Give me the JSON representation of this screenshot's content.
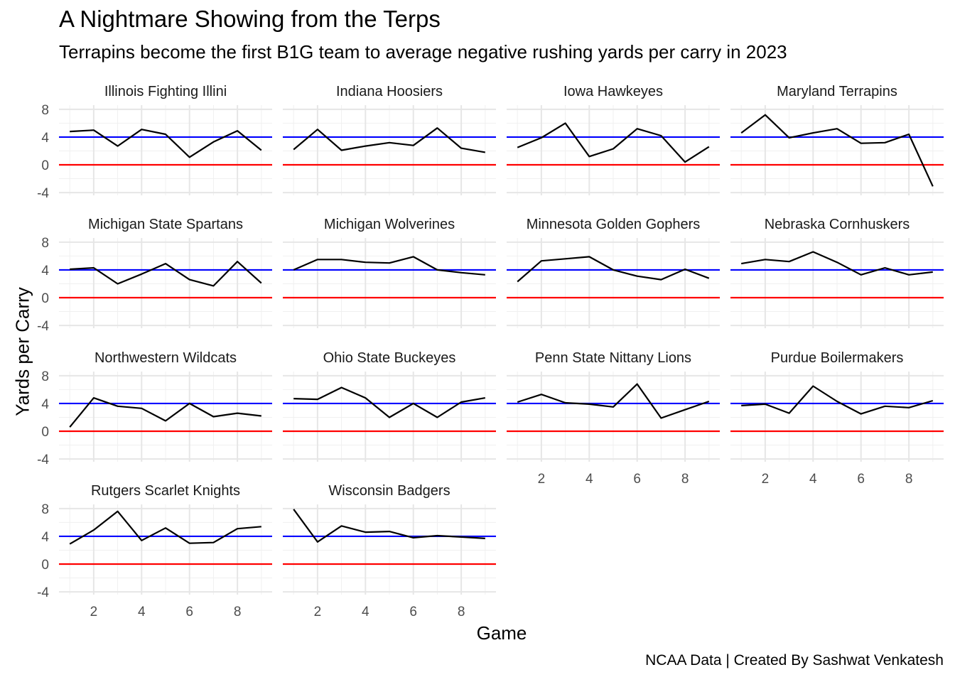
{
  "chart_data": {
    "type": "line",
    "title": "A Nightmare Showing from the Terps",
    "subtitle": "Terrapins become the first B1G team to average negative rushing yards per carry in 2023",
    "xlabel": "Game",
    "ylabel": "Yards per Carry",
    "caption": "NCAA Data | Created By Sashwat Venkatesh",
    "xlim": [
      0.55,
      9.45
    ],
    "ylim": [
      -4.4,
      8.6
    ],
    "x_ticks": [
      2,
      4,
      6,
      8
    ],
    "y_ticks": [
      -4,
      0,
      4,
      8
    ],
    "grid": true,
    "reference_lines": [
      {
        "y": 4,
        "color": "#0000ff"
      },
      {
        "y": 0,
        "color": "#ff0000"
      }
    ],
    "line_color": "#000000",
    "x": [
      1,
      2,
      3,
      4,
      5,
      6,
      7,
      8,
      9
    ],
    "facets": [
      {
        "name": "Illinois Fighting Illini",
        "values": [
          4.8,
          5.0,
          2.7,
          5.1,
          4.4,
          1.1,
          3.3,
          4.9,
          2.1
        ]
      },
      {
        "name": "Indiana Hoosiers",
        "values": [
          2.2,
          5.1,
          2.1,
          2.7,
          3.2,
          2.8,
          5.3,
          2.4,
          1.8
        ]
      },
      {
        "name": "Iowa Hawkeyes",
        "values": [
          2.5,
          3.9,
          6.0,
          1.2,
          2.3,
          5.2,
          4.2,
          0.4,
          2.6
        ]
      },
      {
        "name": "Maryland Terrapins",
        "values": [
          4.6,
          7.2,
          3.9,
          4.6,
          5.2,
          3.1,
          3.2,
          4.4,
          -3.1
        ]
      },
      {
        "name": "Michigan State Spartans",
        "values": [
          4.1,
          4.3,
          2.0,
          3.4,
          4.9,
          2.6,
          1.7,
          5.2,
          2.1
        ]
      },
      {
        "name": "Michigan Wolverines",
        "values": [
          4.0,
          5.5,
          5.5,
          5.1,
          5.0,
          5.9,
          4.0,
          3.6,
          3.3
        ]
      },
      {
        "name": "Minnesota Golden Gophers",
        "values": [
          2.3,
          5.3,
          5.6,
          5.9,
          4.0,
          3.1,
          2.6,
          4.1,
          2.8
        ]
      },
      {
        "name": "Nebraska Cornhuskers",
        "values": [
          4.9,
          5.5,
          5.2,
          6.6,
          5.1,
          3.3,
          4.3,
          3.3,
          3.7
        ]
      },
      {
        "name": "Northwestern Wildcats",
        "values": [
          0.6,
          4.8,
          3.6,
          3.3,
          1.5,
          4.0,
          2.1,
          2.6,
          2.2
        ]
      },
      {
        "name": "Ohio State Buckeyes",
        "values": [
          4.7,
          4.6,
          6.3,
          4.8,
          2.0,
          4.0,
          2.0,
          4.2,
          4.8
        ]
      },
      {
        "name": "Penn State Nittany Lions",
        "values": [
          4.2,
          5.3,
          4.1,
          3.9,
          3.5,
          6.8,
          1.9,
          3.1,
          4.3
        ]
      },
      {
        "name": "Purdue Boilermakers",
        "values": [
          3.7,
          3.9,
          2.6,
          6.5,
          4.3,
          2.5,
          3.6,
          3.4,
          4.4
        ]
      },
      {
        "name": "Rutgers Scarlet Knights",
        "values": [
          2.9,
          4.9,
          7.6,
          3.4,
          5.2,
          3.0,
          3.1,
          5.1,
          5.4
        ]
      },
      {
        "name": "Wisconsin Badgers",
        "values": [
          7.9,
          3.2,
          5.5,
          4.6,
          4.7,
          3.8,
          4.1,
          3.9,
          3.7
        ]
      }
    ]
  }
}
